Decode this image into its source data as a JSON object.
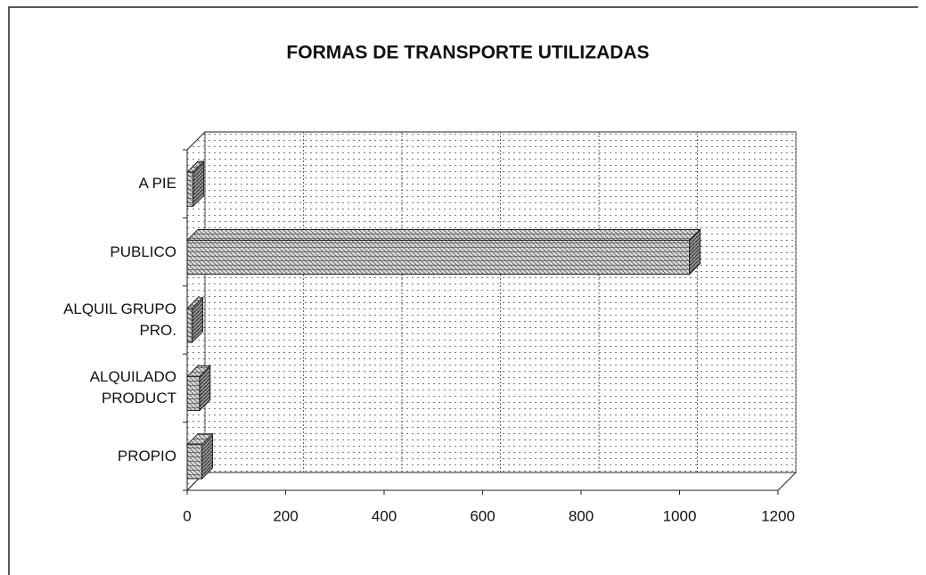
{
  "chart_data": {
    "type": "bar3d_horizontal",
    "title": "FORMAS DE TRANSPORTE UTILIZADAS",
    "categories": [
      "A PIE",
      "PUBLICO",
      "ALQUIL GRUPO PRO.",
      "ALQUILADO PRODUCT",
      "PROPIO"
    ],
    "values": [
      12,
      1020,
      10,
      25,
      30
    ],
    "color": "#9a9a9a",
    "xlim": [
      0,
      1200
    ],
    "xticks": [
      0,
      200,
      400,
      600,
      800,
      1000,
      1200
    ],
    "grid": true
  }
}
